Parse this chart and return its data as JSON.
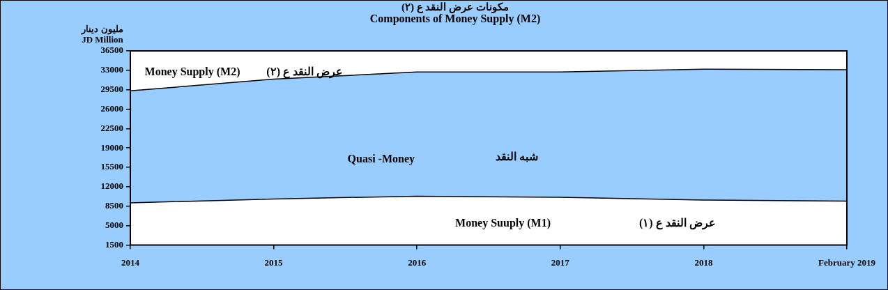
{
  "chart_data": {
    "type": "area",
    "stacked": true,
    "title": "مكونات عرض النقد ع (٢)",
    "subtitle": "Components of Money Supply (M2)",
    "ylabel": "مليون دينار\nJD Million",
    "categories": [
      "2014",
      "2015",
      "2016",
      "2017",
      "2018",
      "February 2019"
    ],
    "series": [
      {
        "name": "Money Suuply (M1)",
        "color": "#ffffff",
        "values": [
          9100,
          9800,
          10300,
          10100,
          9600,
          9400
        ]
      },
      {
        "name": "Quasi -Money",
        "color": "#99ccff",
        "values": [
          20200,
          21600,
          22400,
          22600,
          23600,
          23700
        ]
      }
    ],
    "ylim": [
      1500,
      36500
    ],
    "yticks": [
      1500,
      5000,
      8500,
      12000,
      15500,
      19000,
      22500,
      26000,
      29500,
      33000,
      36500
    ],
    "annotations": [
      "Money Supply (M2)",
      "عرض النقد ع (٢)",
      "شبه النقد",
      "عرض النقد ع (١)"
    ],
    "grid": false,
    "legend": false
  }
}
